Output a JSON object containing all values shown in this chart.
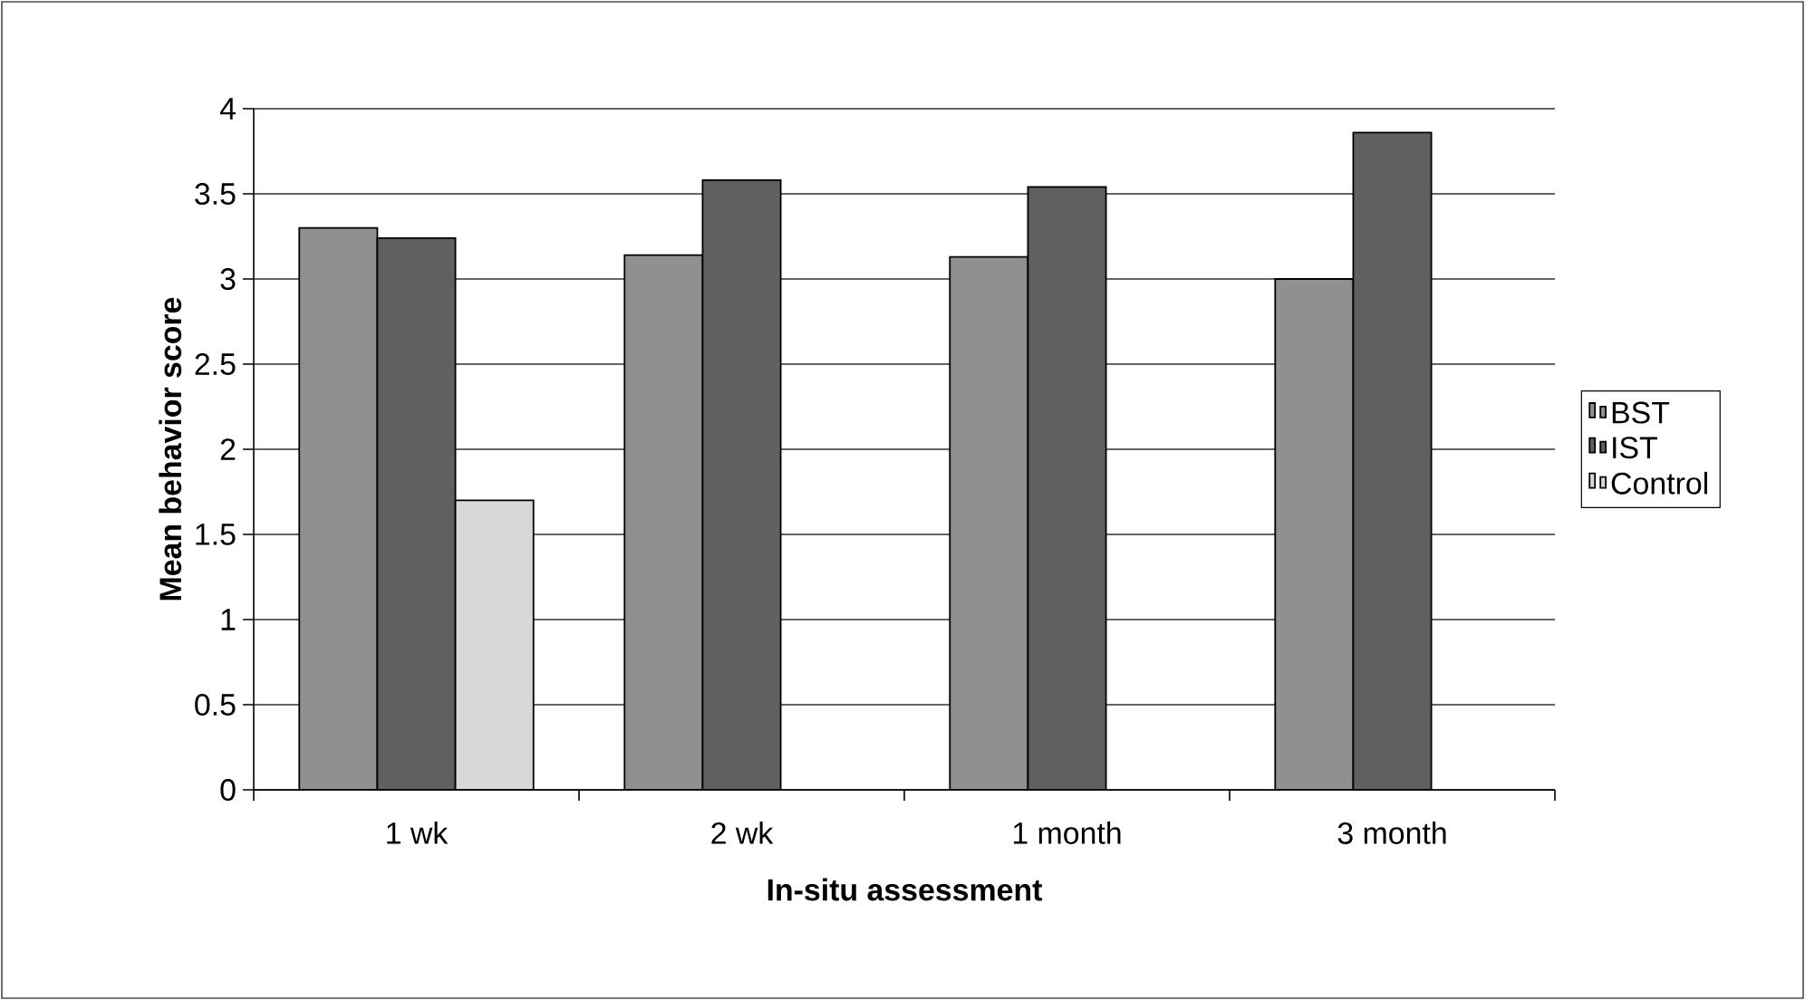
{
  "chart_data": {
    "type": "bar",
    "xlabel": "In-situ assessment",
    "ylabel": "Mean behavior score",
    "categories": [
      "1 wk",
      "2 wk",
      "1 month",
      "3 month"
    ],
    "series": [
      {
        "name": "BST",
        "color": "#909090",
        "values": [
          3.3,
          3.14,
          3.13,
          3.0
        ]
      },
      {
        "name": "IST",
        "color": "#606060",
        "values": [
          3.24,
          3.58,
          3.54,
          3.86
        ]
      },
      {
        "name": "Control",
        "color": "#d8d8d8",
        "values": [
          1.7,
          null,
          null,
          null
        ]
      }
    ],
    "ylim": [
      0,
      4
    ],
    "yticks": [
      0,
      0.5,
      1,
      1.5,
      2,
      2.5,
      3,
      3.5,
      4
    ],
    "grid": "y",
    "legend": "right"
  }
}
